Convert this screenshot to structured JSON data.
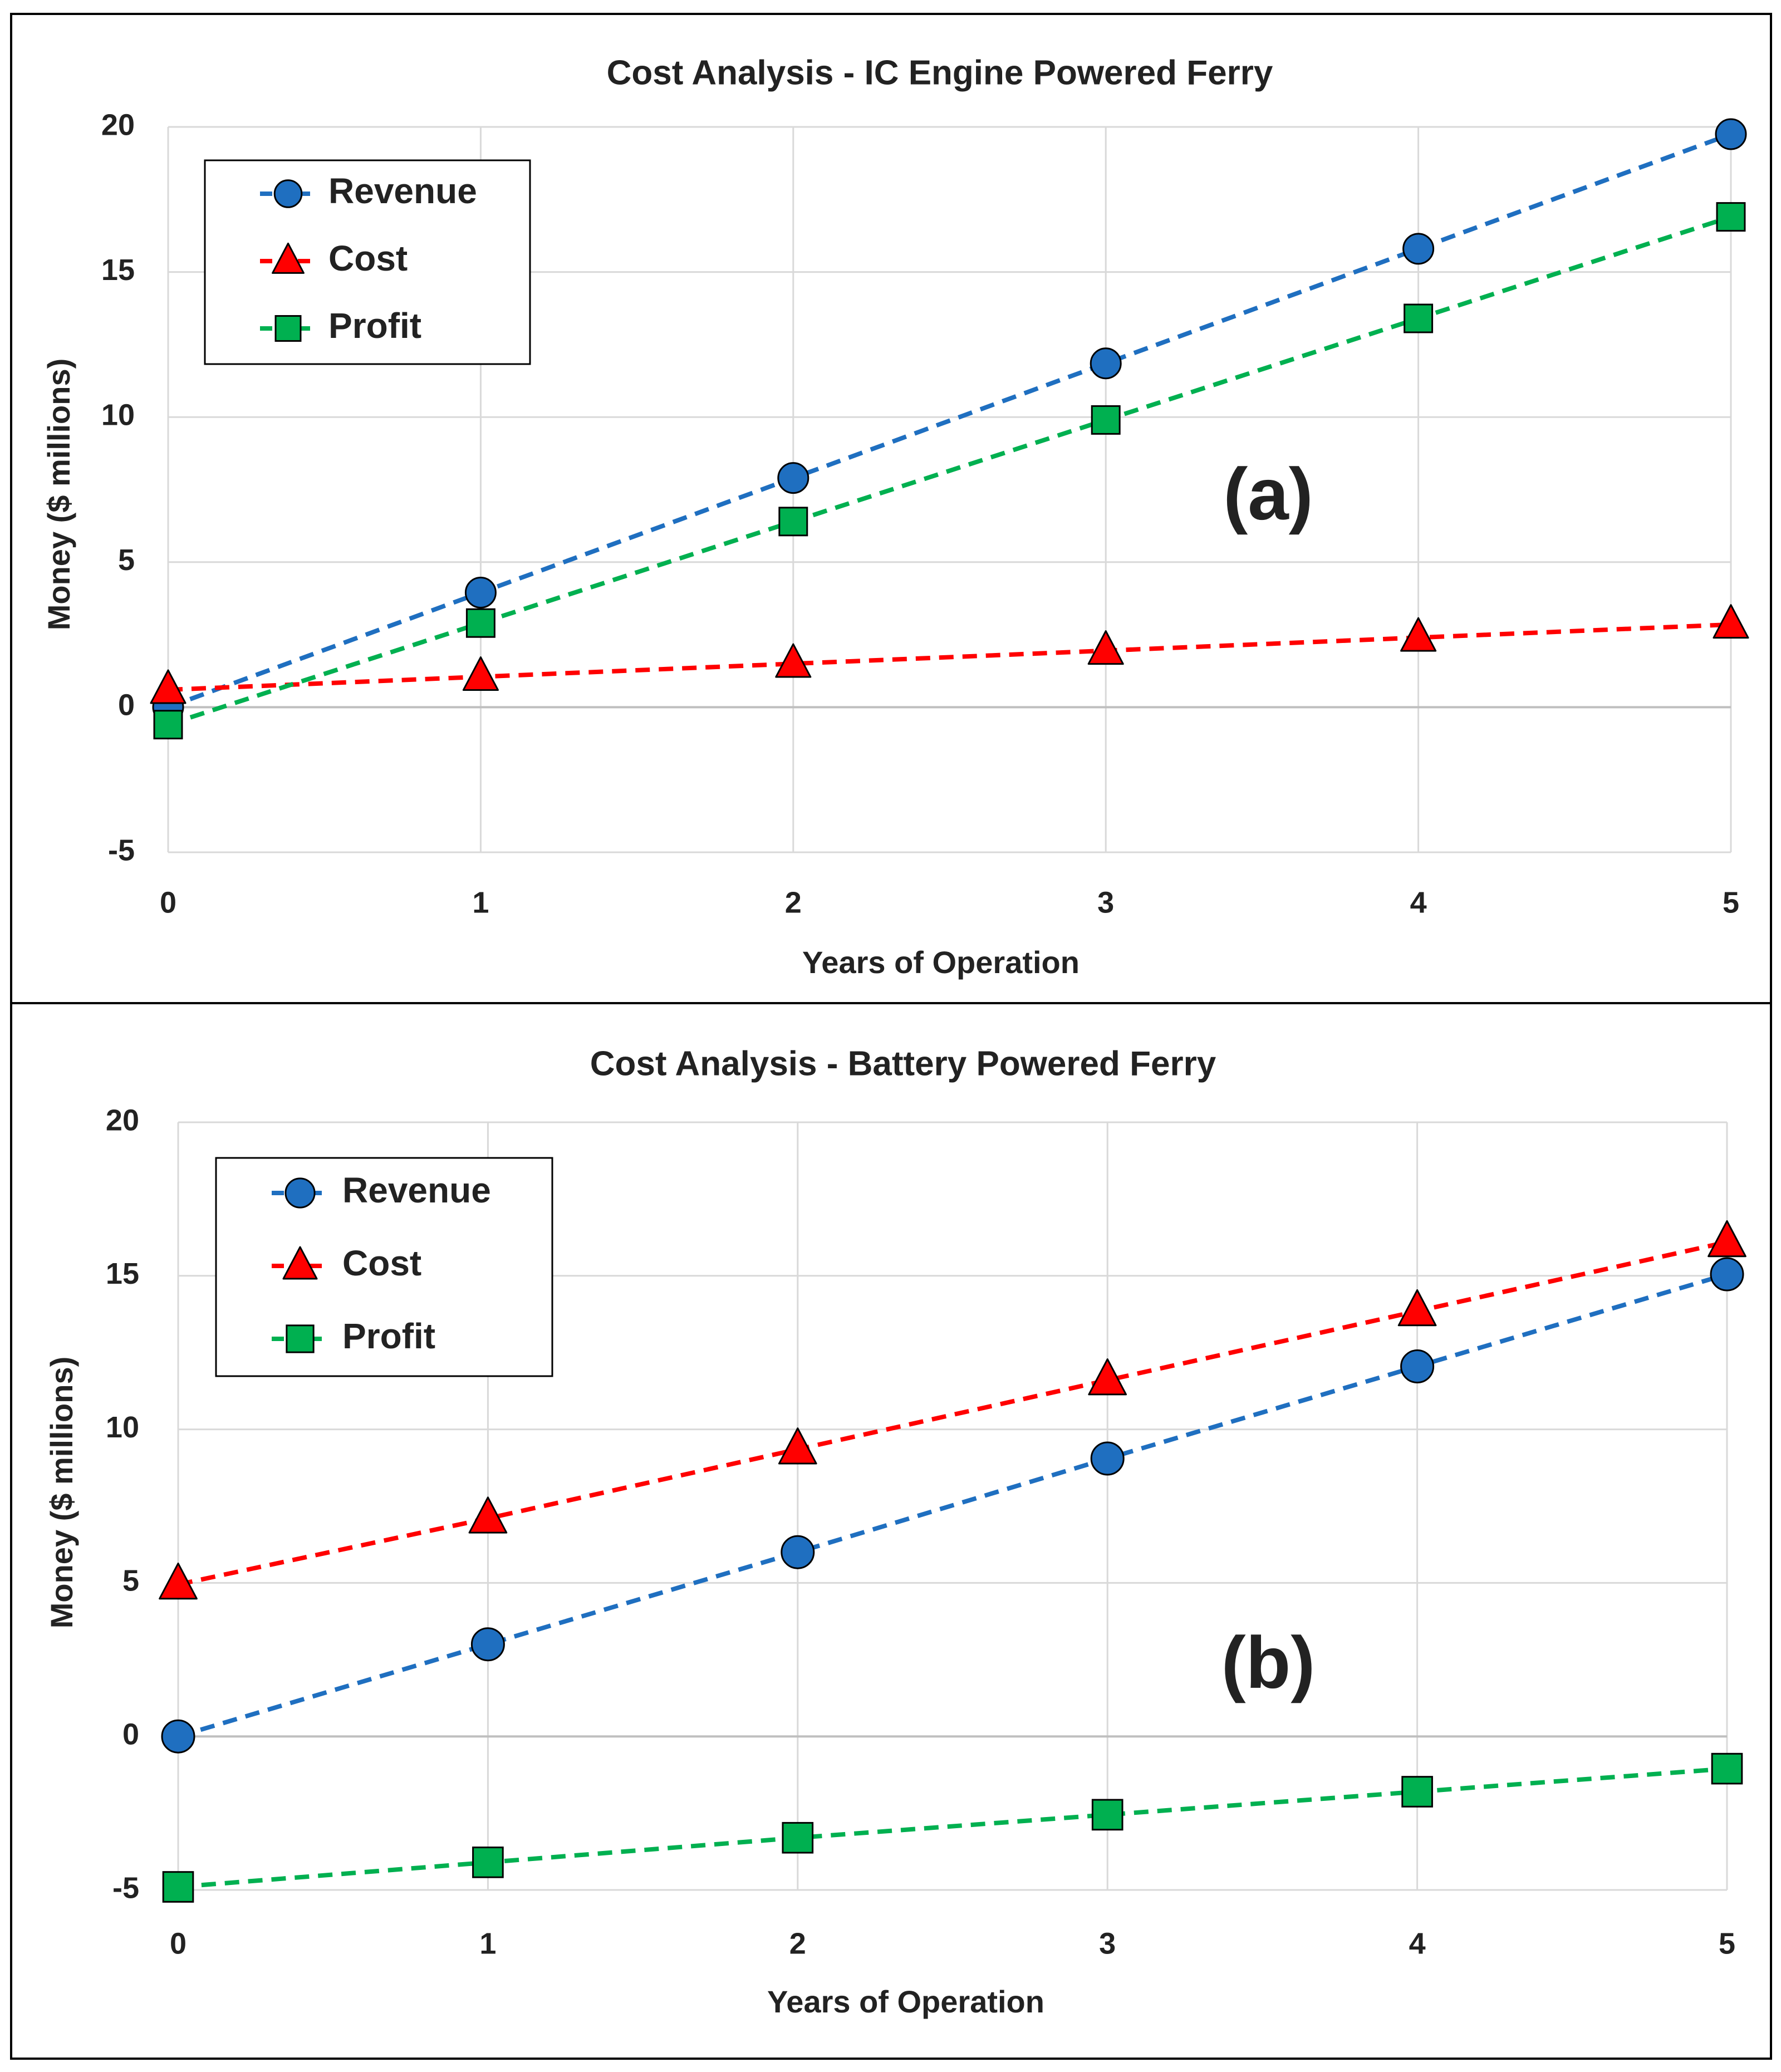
{
  "chart_data": [
    {
      "type": "line",
      "title": "Cost Analysis - IC Engine Powered Ferry",
      "panel_label": "(a)",
      "xlabel": "Years of Operation",
      "ylabel": "Money ($ millions)",
      "x": [
        0,
        1,
        2,
        3,
        4,
        5
      ],
      "x_tick_labels": [
        "0",
        "1",
        "2",
        "3",
        "4",
        "5"
      ],
      "ylim": [
        -5,
        20
      ],
      "y_ticks": [
        -5,
        0,
        5,
        10,
        15,
        20
      ],
      "y_tick_labels": [
        "-5",
        "0",
        "5",
        "10",
        "15",
        "20"
      ],
      "grid": true,
      "legend_position": "top-left",
      "series": [
        {
          "name": "Revenue",
          "values": [
            0,
            3.95,
            7.9,
            11.85,
            15.8,
            19.75
          ],
          "color": "#1f6fc0",
          "marker": "circle"
        },
        {
          "name": "Cost",
          "values": [
            0.6,
            1.05,
            1.5,
            1.95,
            2.4,
            2.85
          ],
          "color": "#ff0000",
          "marker": "triangle"
        },
        {
          "name": "Profit",
          "values": [
            -0.6,
            2.9,
            6.4,
            9.9,
            13.4,
            16.9
          ],
          "color": "#00b050",
          "marker": "square"
        }
      ]
    },
    {
      "type": "line",
      "title": "Cost Analysis - Battery Powered Ferry",
      "panel_label": "(b)",
      "xlabel": "Years of Operation",
      "ylabel": "Money ($ millions)",
      "x": [
        0,
        1,
        2,
        3,
        4,
        5
      ],
      "x_tick_labels": [
        "0",
        "1",
        "2",
        "3",
        "4",
        "5"
      ],
      "ylim": [
        -5,
        20
      ],
      "y_ticks": [
        -5,
        0,
        5,
        10,
        15,
        20
      ],
      "y_tick_labels": [
        "-5",
        "0",
        "5",
        "10",
        "15",
        "20"
      ],
      "grid": true,
      "legend_position": "top-left",
      "series": [
        {
          "name": "Revenue",
          "values": [
            0,
            3.0,
            6.0,
            9.05,
            12.05,
            15.05
          ],
          "color": "#1f6fc0",
          "marker": "circle"
        },
        {
          "name": "Cost",
          "values": [
            4.95,
            7.1,
            9.35,
            11.6,
            13.85,
            16.1
          ],
          "color": "#ff0000",
          "marker": "triangle"
        },
        {
          "name": "Profit",
          "values": [
            -4.9,
            -4.1,
            -3.3,
            -2.55,
            -1.8,
            -1.05
          ],
          "color": "#00b050",
          "marker": "square"
        }
      ]
    }
  ]
}
